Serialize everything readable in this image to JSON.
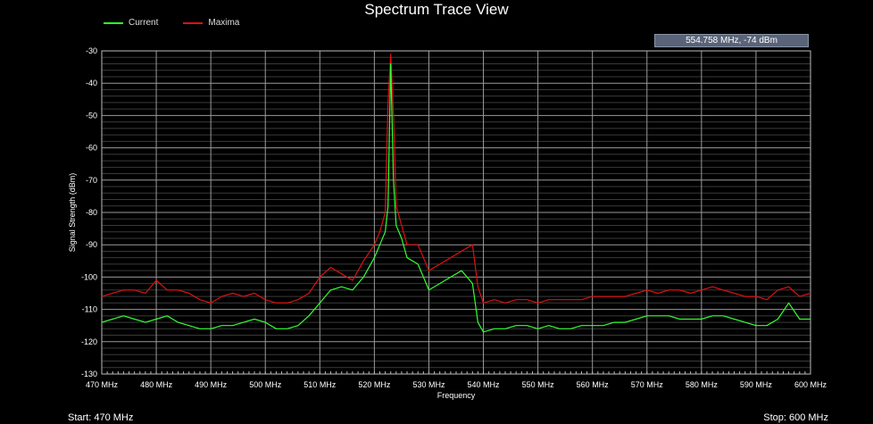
{
  "window": {
    "title": "Spectrum Trace View",
    "cursor_readout": "554.758 MHz,   -74 dBm",
    "start_label": "Start: 470 MHz",
    "stop_label": "Stop: 600 MHz"
  },
  "colors": {
    "background": "#000000",
    "grid_major": "#9a9a9a",
    "grid_minor": "#3a3a3a",
    "current": "#33ff33",
    "maxima": "#dd1111"
  },
  "chart_data": {
    "type": "line",
    "title": "Spectrum Trace View",
    "xlabel": "Frequency",
    "ylabel": "Signal Strength (dBm)",
    "xlim": [
      470,
      600
    ],
    "ylim": [
      -130,
      -30
    ],
    "x_unit": "MHz",
    "x_ticks": [
      470,
      480,
      490,
      500,
      510,
      520,
      530,
      540,
      550,
      560,
      570,
      580,
      590,
      600
    ],
    "x_tick_labels": [
      "470 MHz",
      "480 MHz",
      "490 MHz",
      "500 MHz",
      "510 MHz",
      "520 MHz",
      "530 MHz",
      "540 MHz",
      "550 MHz",
      "560 MHz",
      "570 MHz",
      "580 MHz",
      "590 MHz",
      "600 MHz"
    ],
    "y_ticks": [
      -30,
      -40,
      -50,
      -60,
      -70,
      -80,
      -90,
      -100,
      -110,
      -120,
      -130
    ],
    "y_tick_labels": [
      "-30",
      "-40",
      "-50",
      "-60",
      "-70",
      "-80",
      "-90",
      "-100",
      "-110",
      "-120",
      "-130"
    ],
    "grid": true,
    "legend_position": "top-left",
    "series": [
      {
        "name": "Current",
        "color": "#33ff33",
        "x": [
          470,
          472,
          474,
          476,
          478,
          480,
          482,
          484,
          486,
          488,
          490,
          492,
          494,
          496,
          498,
          500,
          502,
          504,
          506,
          508,
          510,
          512,
          514,
          516,
          518,
          520,
          521,
          522,
          522.5,
          523,
          523.5,
          524,
          525,
          526,
          528,
          530,
          532,
          534,
          536,
          538,
          539,
          540,
          542,
          544,
          546,
          548,
          550,
          552,
          554,
          556,
          558,
          560,
          562,
          564,
          566,
          568,
          570,
          572,
          574,
          576,
          578,
          580,
          582,
          584,
          586,
          588,
          590,
          592,
          594,
          596,
          598,
          600
        ],
        "values": [
          -114,
          -113,
          -112,
          -113,
          -114,
          -113,
          -112,
          -114,
          -115,
          -116,
          -116,
          -115,
          -115,
          -114,
          -113,
          -114,
          -116,
          -116,
          -115,
          -112,
          -108,
          -104,
          -103,
          -104,
          -100,
          -94,
          -90,
          -86,
          -78,
          -34,
          -70,
          -84,
          -88,
          -94,
          -96,
          -104,
          -102,
          -100,
          -98,
          -102,
          -114,
          -117,
          -116,
          -116,
          -115,
          -115,
          -116,
          -115,
          -116,
          -116,
          -115,
          -115,
          -115,
          -114,
          -114,
          -113,
          -112,
          -112,
          -112,
          -113,
          -113,
          -113,
          -112,
          -112,
          -113,
          -114,
          -115,
          -115,
          -113,
          -108,
          -113,
          -113
        ]
      },
      {
        "name": "Maxima",
        "color": "#dd1111",
        "x": [
          470,
          472,
          474,
          476,
          478,
          480,
          482,
          484,
          486,
          488,
          490,
          492,
          494,
          496,
          498,
          500,
          502,
          504,
          506,
          508,
          510,
          512,
          514,
          516,
          518,
          520,
          521,
          522,
          522.5,
          523,
          523.5,
          524,
          525,
          526,
          528,
          530,
          532,
          534,
          536,
          538,
          539,
          540,
          542,
          544,
          546,
          548,
          550,
          552,
          554,
          556,
          558,
          560,
          562,
          564,
          566,
          568,
          570,
          572,
          574,
          576,
          578,
          580,
          582,
          584,
          586,
          588,
          590,
          592,
          594,
          596,
          598,
          600
        ],
        "values": [
          -106,
          -105,
          -104,
          -104,
          -105,
          -101,
          -104,
          -104,
          -105,
          -107,
          -108,
          -106,
          -105,
          -106,
          -105,
          -107,
          -108,
          -108,
          -107,
          -105,
          -100,
          -97,
          -99,
          -101,
          -95,
          -90,
          -86,
          -80,
          -46,
          -31,
          -50,
          -78,
          -84,
          -90,
          -90,
          -98,
          -96,
          -94,
          -92,
          -90,
          -103,
          -108,
          -107,
          -108,
          -107,
          -107,
          -108,
          -107,
          -107,
          -107,
          -107,
          -106,
          -106,
          -106,
          -106,
          -105,
          -104,
          -105,
          -104,
          -104,
          -105,
          -104,
          -103,
          -104,
          -105,
          -106,
          -106,
          -107,
          -104,
          -103,
          -106,
          -105
        ]
      }
    ]
  }
}
